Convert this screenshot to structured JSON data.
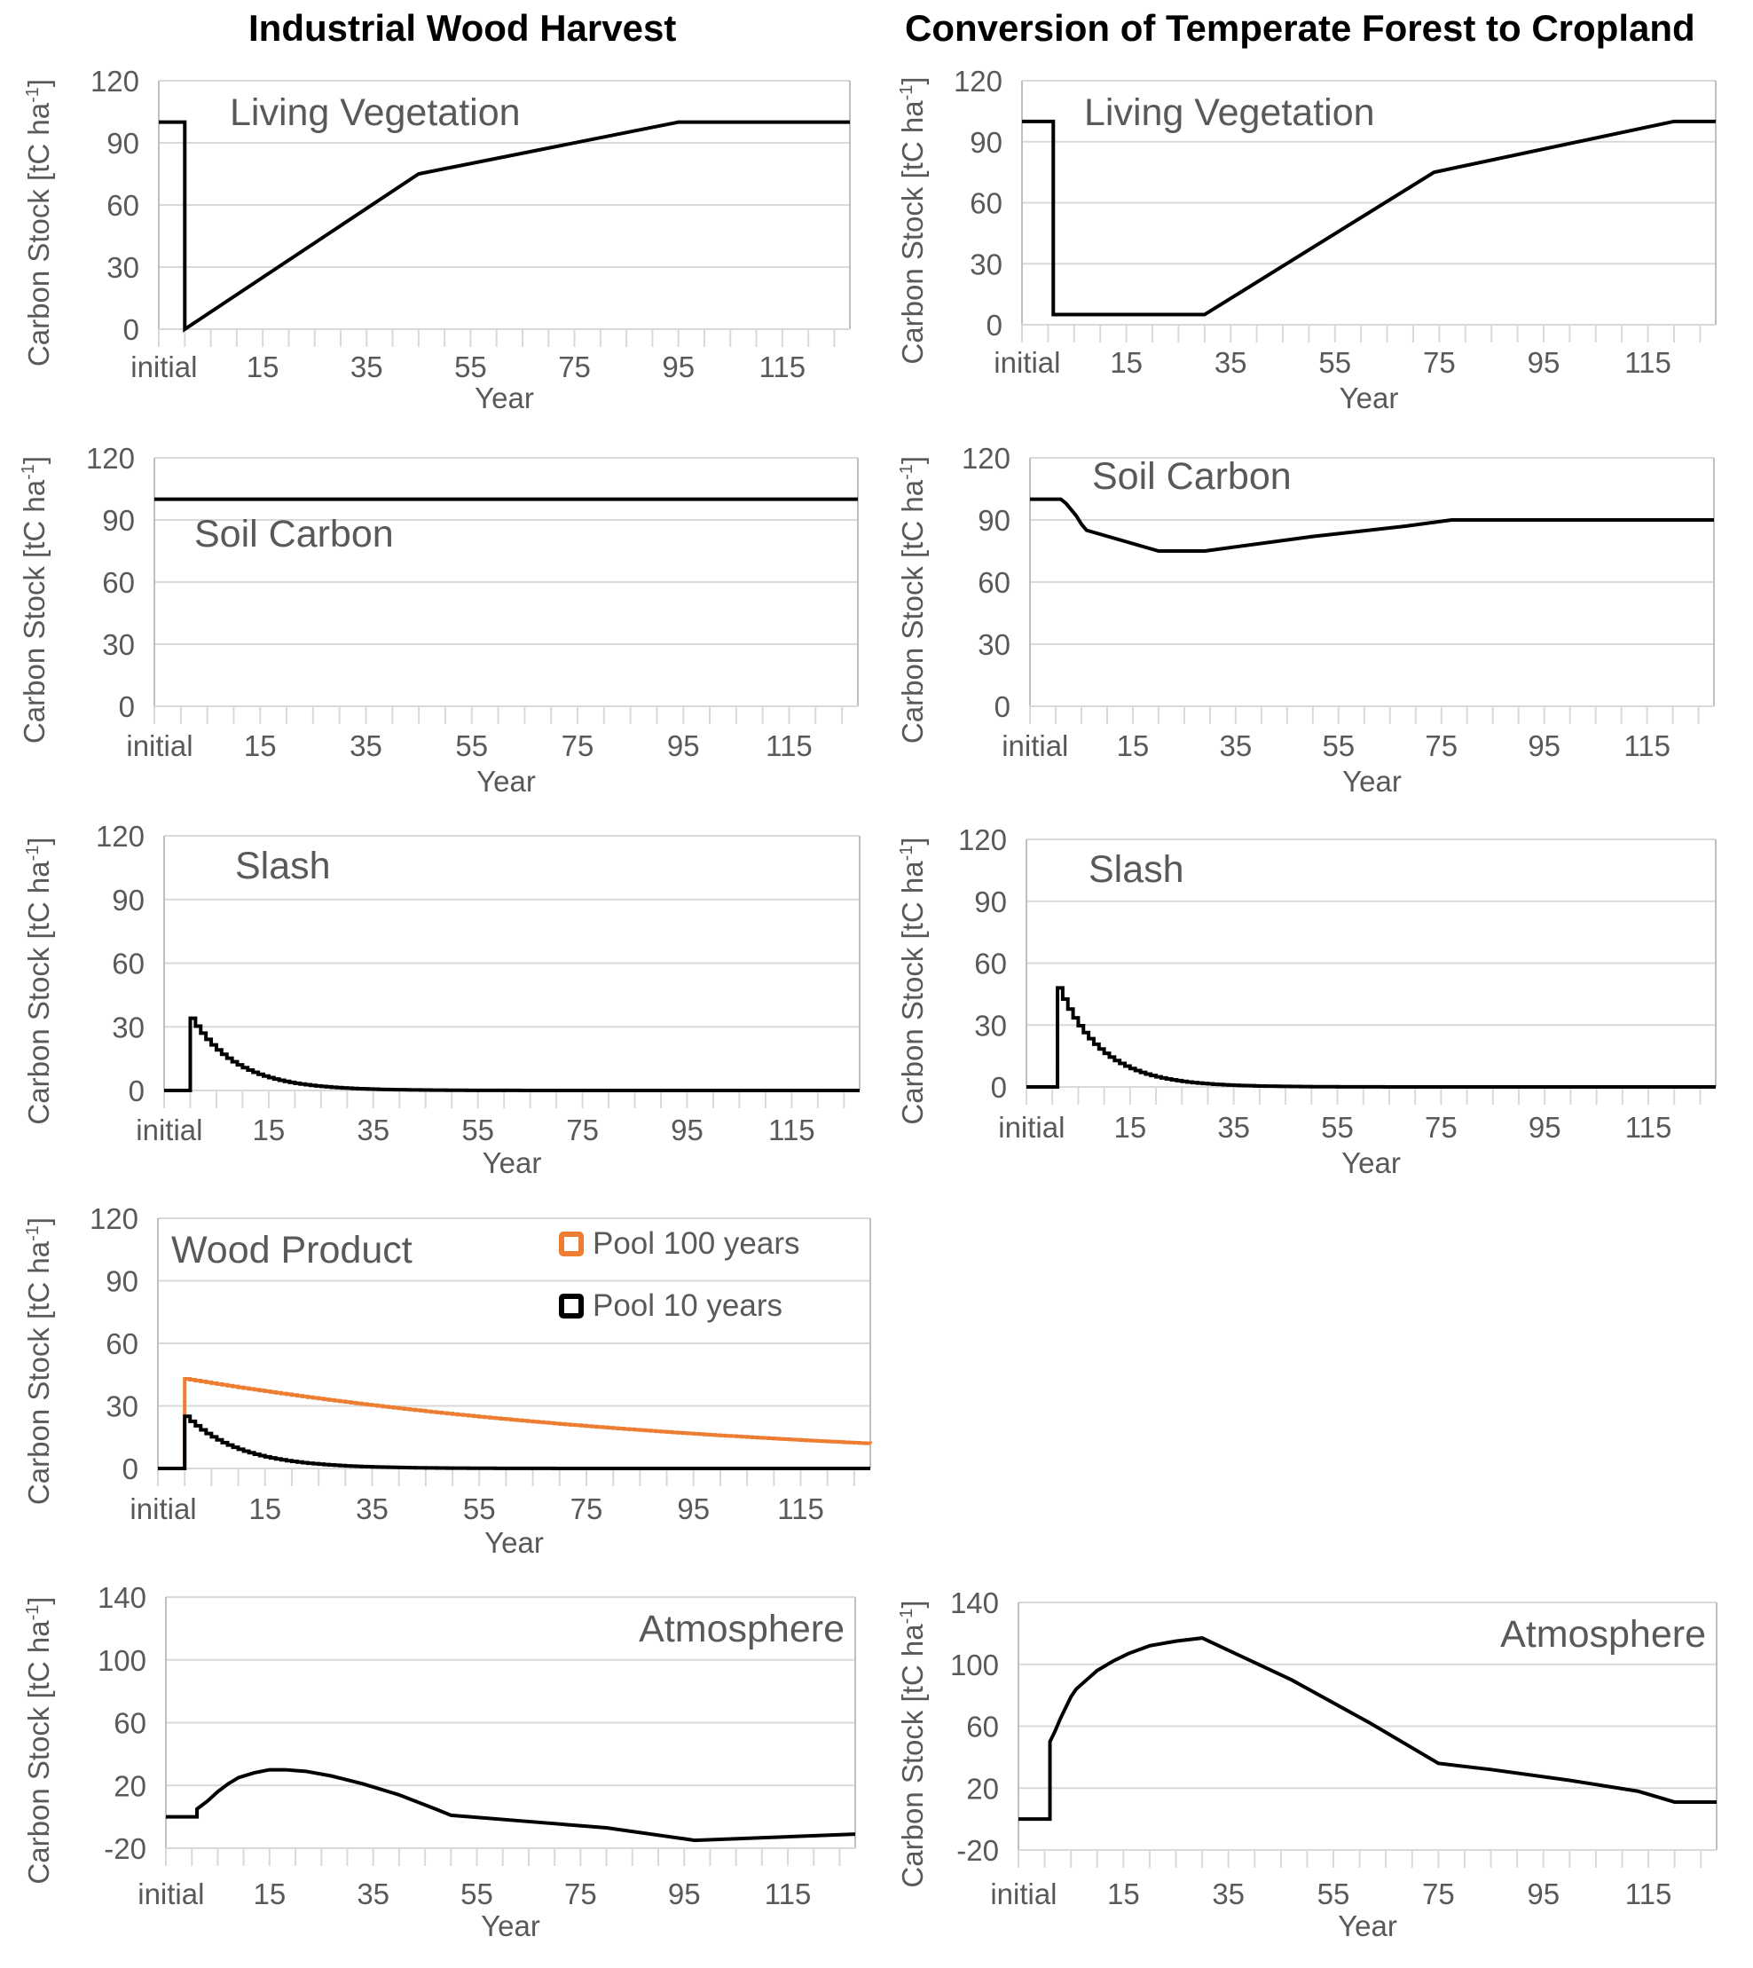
{
  "column_titles": {
    "left": "Industrial Wood Harvest",
    "right": "Conversion of Temperate Forest to Cropland"
  },
  "chart_data": [
    {
      "id": "harvest-living-vegetation",
      "type": "line",
      "column": "left",
      "title": "Living Vegetation",
      "title_position": "top-left",
      "xlabel": "Year",
      "ylabel": "Carbon Stock [tC ha-1]",
      "ylabel_parts": [
        "Carbon Stock [tC ha",
        "-1",
        "]"
      ],
      "x_tick_labels": [
        "initial",
        "15",
        "35",
        "55",
        "75",
        "95",
        "115"
      ],
      "xlim": [
        -5,
        128
      ],
      "ylim": [
        0,
        120
      ],
      "y_ticks": [
        0,
        30,
        60,
        90,
        120
      ],
      "grid": true,
      "step": true,
      "series": [
        {
          "name": "Living Vegetation",
          "color": "#000000",
          "points": [
            [
              -5,
              100
            ],
            [
              0,
              100
            ],
            [
              0,
              0
            ],
            [
              45,
              75
            ],
            [
              95,
              100
            ],
            [
              128,
              100
            ]
          ]
        }
      ]
    },
    {
      "id": "conversion-living-vegetation",
      "type": "line",
      "column": "right",
      "title": "Living Vegetation",
      "title_position": "top-left",
      "xlabel": "Year",
      "ylabel": "Carbon Stock [tC ha-1]",
      "ylabel_parts": [
        "Carbon Stock [tC ha",
        "-1",
        "]"
      ],
      "x_tick_labels": [
        "initial",
        "15",
        "35",
        "55",
        "75",
        "95",
        "115"
      ],
      "xlim": [
        -5,
        128
      ],
      "ylim": [
        0,
        120
      ],
      "y_ticks": [
        0,
        30,
        60,
        90,
        120
      ],
      "grid": true,
      "step": true,
      "series": [
        {
          "name": "Living Vegetation",
          "color": "#000000",
          "points": [
            [
              -5,
              100
            ],
            [
              1,
              100
            ],
            [
              1,
              5
            ],
            [
              30,
              5
            ],
            [
              74,
              75
            ],
            [
              120,
              100
            ],
            [
              128,
              100
            ]
          ]
        }
      ]
    },
    {
      "id": "harvest-soil-carbon",
      "type": "line",
      "column": "left",
      "title": "Soil Carbon",
      "title_position": "upper-left",
      "xlabel": "Year",
      "ylabel": "Carbon Stock [tC ha-1]",
      "ylabel_parts": [
        "Carbon Stock [tC ha",
        "-1",
        "]"
      ],
      "x_tick_labels": [
        "initial",
        "15",
        "35",
        "55",
        "75",
        "95",
        "115"
      ],
      "xlim": [
        -5,
        128
      ],
      "ylim": [
        0,
        120
      ],
      "y_ticks": [
        0,
        30,
        60,
        90,
        120
      ],
      "grid": true,
      "step": false,
      "series": [
        {
          "name": "Soil Carbon",
          "color": "#000000",
          "points": [
            [
              -5,
              100
            ],
            [
              128,
              100
            ]
          ]
        }
      ]
    },
    {
      "id": "conversion-soil-carbon",
      "type": "line",
      "column": "right",
      "title": "Soil Carbon",
      "title_position": "top-left",
      "xlabel": "Year",
      "ylabel": "Carbon Stock [tC ha-1]",
      "ylabel_parts": [
        "Carbon Stock [tC ha",
        "-1",
        "]"
      ],
      "x_tick_labels": [
        "initial",
        "15",
        "35",
        "55",
        "75",
        "95",
        "115"
      ],
      "xlim": [
        -5,
        128
      ],
      "ylim": [
        0,
        120
      ],
      "y_ticks": [
        0,
        30,
        60,
        90,
        120
      ],
      "grid": true,
      "step": true,
      "series": [
        {
          "name": "Soil Carbon",
          "color": "#000000",
          "points": [
            [
              -5,
              100
            ],
            [
              1,
              100
            ],
            [
              2,
              98
            ],
            [
              3,
              95
            ],
            [
              4,
              92
            ],
            [
              5,
              88
            ],
            [
              6,
              85
            ],
            [
              20,
              75
            ],
            [
              29,
              75
            ],
            [
              50,
              82
            ],
            [
              68,
              87
            ],
            [
              77,
              90
            ],
            [
              128,
              90
            ]
          ]
        }
      ]
    },
    {
      "id": "harvest-slash",
      "type": "line",
      "column": "left",
      "title": "Slash",
      "title_position": "top-left",
      "xlabel": "Year",
      "ylabel": "Carbon Stock [tC ha-1]",
      "ylabel_parts": [
        "Carbon Stock [tC ha",
        "-1",
        "]"
      ],
      "x_tick_labels": [
        "initial",
        "15",
        "35",
        "55",
        "75",
        "95",
        "115"
      ],
      "xlim": [
        -5,
        128
      ],
      "ylim": [
        0,
        120
      ],
      "y_ticks": [
        0,
        30,
        60,
        90,
        120
      ],
      "grid": true,
      "step": true,
      "series": [
        {
          "name": "Slash",
          "color": "#000000",
          "decay": {
            "start_year": 0,
            "initial": 34,
            "rate_per_year": 0.115,
            "floor": 0
          }
        }
      ]
    },
    {
      "id": "conversion-slash",
      "type": "line",
      "column": "right",
      "title": "Slash",
      "title_position": "top-left",
      "xlabel": "Year",
      "ylabel": "Carbon Stock [tC ha-1]",
      "ylabel_parts": [
        "Carbon Stock [tC ha",
        "-1",
        "]"
      ],
      "x_tick_labels": [
        "initial",
        "15",
        "35",
        "55",
        "75",
        "95",
        "115"
      ],
      "xlim": [
        -5,
        128
      ],
      "ylim": [
        0,
        120
      ],
      "y_ticks": [
        0,
        30,
        60,
        90,
        120
      ],
      "grid": true,
      "step": true,
      "series": [
        {
          "name": "Slash",
          "color": "#000000",
          "decay": {
            "start_year": 1,
            "initial": 48,
            "rate_per_year": 0.12,
            "floor": 0
          }
        }
      ]
    },
    {
      "id": "harvest-wood-product",
      "type": "line",
      "column": "left",
      "title": "Wood Product",
      "title_position": "top-left",
      "xlabel": "Year",
      "ylabel": "Carbon Stock [tC ha-1]",
      "ylabel_parts": [
        "Carbon Stock [tC ha",
        "-1",
        "]"
      ],
      "x_tick_labels": [
        "initial",
        "15",
        "35",
        "55",
        "75",
        "95",
        "115"
      ],
      "xlim": [
        -5,
        128
      ],
      "ylim": [
        0,
        120
      ],
      "y_ticks": [
        0,
        30,
        60,
        90,
        120
      ],
      "grid": true,
      "step": true,
      "legend": {
        "placement": "top-right"
      },
      "series": [
        {
          "name": "Pool 100 years",
          "color": "#ed7d31",
          "decay": {
            "start_year": 0,
            "initial": 43,
            "rate_per_year": 0.01,
            "floor": 0
          }
        },
        {
          "name": "Pool 10 years",
          "color": "#000000",
          "decay": {
            "start_year": 0,
            "initial": 25,
            "rate_per_year": 0.1,
            "floor": 0
          }
        }
      ]
    },
    {
      "id": "harvest-atmosphere",
      "type": "line",
      "column": "left",
      "title": "Atmosphere",
      "title_position": "top-right",
      "xlabel": "Year",
      "ylabel": "Carbon Stock [tC ha-1]",
      "ylabel_parts": [
        "Carbon Stock [tC ha",
        "-1",
        "]"
      ],
      "x_tick_labels": [
        "initial",
        "15",
        "35",
        "55",
        "75",
        "95",
        "115"
      ],
      "xlim": [
        -5,
        128
      ],
      "ylim": [
        -20,
        140
      ],
      "y_ticks": [
        -20,
        20,
        60,
        100,
        140
      ],
      "grid": true,
      "step": false,
      "series": [
        {
          "name": "Atmosphere",
          "color": "#000000",
          "points": [
            [
              -5,
              0
            ],
            [
              1,
              0
            ],
            [
              1,
              5
            ],
            [
              3,
              10
            ],
            [
              5,
              16
            ],
            [
              7,
              21
            ],
            [
              9,
              25
            ],
            [
              12,
              28
            ],
            [
              15,
              30
            ],
            [
              18,
              30
            ],
            [
              22,
              29
            ],
            [
              27,
              26
            ],
            [
              33,
              21
            ],
            [
              40,
              14
            ],
            [
              47,
              5
            ],
            [
              50,
              1
            ],
            [
              65,
              -3
            ],
            [
              80,
              -7
            ],
            [
              95,
              -14
            ],
            [
              97,
              -15
            ],
            [
              128,
              -11
            ]
          ]
        }
      ]
    },
    {
      "id": "conversion-atmosphere",
      "type": "line",
      "column": "right",
      "title": "Atmosphere",
      "title_position": "top-right",
      "xlabel": "Year",
      "ylabel": "Carbon Stock [tC ha-1]",
      "ylabel_parts": [
        "Carbon Stock [tC ha",
        "-1",
        "]"
      ],
      "x_tick_labels": [
        "initial",
        "15",
        "35",
        "55",
        "75",
        "95",
        "115"
      ],
      "xlim": [
        -5,
        128
      ],
      "ylim": [
        -20,
        140
      ],
      "y_ticks": [
        -20,
        20,
        60,
        100,
        140
      ],
      "grid": true,
      "step": false,
      "series": [
        {
          "name": "Atmosphere",
          "color": "#000000",
          "points": [
            [
              -5,
              0
            ],
            [
              1,
              0
            ],
            [
              1,
              50
            ],
            [
              2,
              57
            ],
            [
              3,
              65
            ],
            [
              4,
              72
            ],
            [
              5,
              79
            ],
            [
              6,
              84
            ],
            [
              8,
              90
            ],
            [
              10,
              96
            ],
            [
              13,
              102
            ],
            [
              16,
              107
            ],
            [
              20,
              112
            ],
            [
              25,
              115
            ],
            [
              30,
              117
            ],
            [
              47,
              90
            ],
            [
              62,
              62
            ],
            [
              75,
              36
            ],
            [
              85,
              32
            ],
            [
              100,
              25
            ],
            [
              113,
              18
            ],
            [
              120,
              11
            ],
            [
              128,
              11
            ]
          ]
        }
      ]
    }
  ]
}
